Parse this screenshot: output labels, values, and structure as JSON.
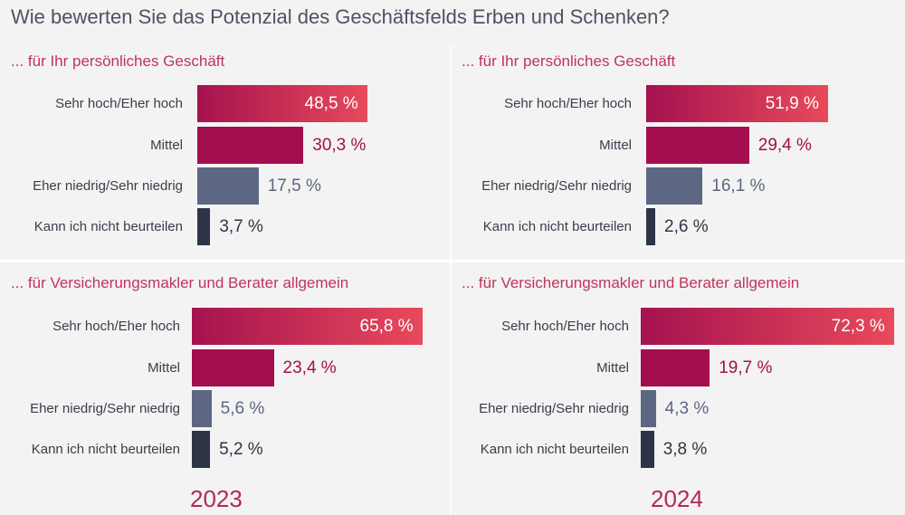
{
  "title": "Wie bewerten Sie das Potenzial des Geschäftsfelds Erben und Schenken?",
  "colors": {
    "high_gradient": [
      "#a5124f",
      "#e84a5b"
    ],
    "mittel": "#a40e4e",
    "niedrig": "#5d6682",
    "kann_nicht": "#2d3445",
    "value_mittel": "#a40e4e",
    "value_grey": "#5d6682",
    "value_dark": "#2d3445"
  },
  "chart_data": [
    {
      "type": "bar",
      "orientation": "horizontal",
      "title": "... für Ihr persönliches Geschäft",
      "year": "2023",
      "categories": [
        "Sehr hoch/Eher hoch",
        "Mittel",
        "Eher niedrig/Sehr niedrig",
        "Kann ich nicht beurteilen"
      ],
      "values": [
        48.5,
        30.3,
        17.5,
        3.7
      ],
      "value_labels": [
        "48,5 %",
        "30,3 %",
        "17,5 %",
        "3,7 %"
      ],
      "unit": "%"
    },
    {
      "type": "bar",
      "orientation": "horizontal",
      "title": "... für Ihr persönliches Geschäft",
      "year": "2024",
      "categories": [
        "Sehr hoch/Eher hoch",
        "Mittel",
        "Eher niedrig/Sehr niedrig",
        "Kann ich nicht beurteilen"
      ],
      "values": [
        51.9,
        29.4,
        16.1,
        2.6
      ],
      "value_labels": [
        "51,9 %",
        "29,4 %",
        "16,1 %",
        "2,6 %"
      ],
      "unit": "%"
    },
    {
      "type": "bar",
      "orientation": "horizontal",
      "title": "... für Versicherungsmakler und Berater allgemein",
      "year": "2023",
      "categories": [
        "Sehr hoch/Eher hoch",
        "Mittel",
        "Eher niedrig/Sehr niedrig",
        "Kann ich nicht beurteilen"
      ],
      "values": [
        65.8,
        23.4,
        5.6,
        5.2
      ],
      "value_labels": [
        "65,8 %",
        "23,4 %",
        "5,6 %",
        "5,2 %"
      ],
      "unit": "%"
    },
    {
      "type": "bar",
      "orientation": "horizontal",
      "title": "... für Versicherungsmakler und Berater allgemein",
      "year": "2024",
      "categories": [
        "Sehr hoch/Eher hoch",
        "Mittel",
        "Eher niedrig/Sehr niedrig",
        "Kann ich nicht beurteilen"
      ],
      "values": [
        72.3,
        19.7,
        4.3,
        3.8
      ],
      "value_labels": [
        "72,3 %",
        "19,7 %",
        "4,3 %",
        "3,8 %"
      ],
      "unit": "%"
    }
  ],
  "years": [
    "2023",
    "2024"
  ]
}
